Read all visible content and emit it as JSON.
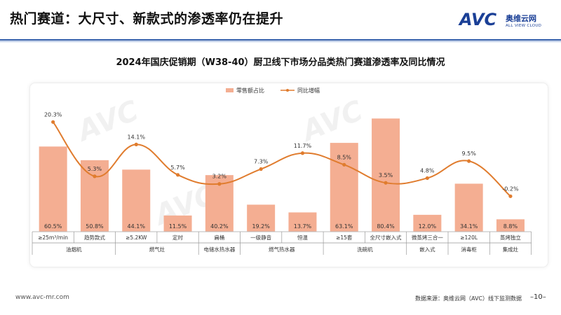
{
  "page": {
    "title": "热门赛道：大尺寸、新款式的渗透率仍在提升",
    "logo_brand": "AVC",
    "logo_cn": "奥维云网",
    "logo_en": "ALL VIEW CLOUD",
    "website": "www.avc-mr.com",
    "source": "数据来源：奥维云网（AVC）线下监测数据",
    "page_number": "–10–"
  },
  "colors": {
    "bar": "#f4ae92",
    "line": "#e07c2e",
    "accent_blue": "#1a3f96"
  },
  "chart_data": {
    "type": "bar",
    "title": "2024年国庆促销期（W38-40）厨卫线下市场分品类热门赛道渗透率及同比情况",
    "legend": [
      "零售额占比",
      "同比增幅"
    ],
    "legend_position": "top-center",
    "categories": [
      "≥25m³/min",
      "趋势款式",
      "≥5.2KW",
      "定时",
      "扁桶",
      "一级静音",
      "恒温",
      "≥15套",
      "全尺寸嵌入式",
      "微蒸烤三合一",
      "≥120L",
      "蒸烤独立"
    ],
    "groups": [
      {
        "label": "油烟机",
        "span": 2
      },
      {
        "label": "燃气灶",
        "span": 2
      },
      {
        "label": "电储水热水器",
        "span": 1
      },
      {
        "label": "燃气热水器",
        "span": 2
      },
      {
        "label": "洗碗机",
        "span": 2
      },
      {
        "label": "嵌入式",
        "span": 1
      },
      {
        "label": "消毒柜",
        "span": 1
      },
      {
        "label": "集成灶",
        "span": 1
      }
    ],
    "series": [
      {
        "name": "零售额占比",
        "type": "bar",
        "values": [
          60.5,
          50.8,
          44.1,
          11.5,
          40.2,
          19.2,
          13.7,
          63.1,
          80.4,
          12.0,
          34.1,
          8.8
        ],
        "labels": [
          "60.5%",
          "50.8%",
          "44.1%",
          "11.5%",
          "40.2%",
          "19.2%",
          "13.7%",
          "63.1%",
          "80.4%",
          "12.0%",
          "34.1%",
          "8.8%"
        ]
      },
      {
        "name": "同比增幅",
        "type": "line",
        "values": [
          20.3,
          5.3,
          14.1,
          5.7,
          3.2,
          7.3,
          11.7,
          8.5,
          3.5,
          4.8,
          9.5,
          -0.2
        ],
        "labels": [
          "20.3%",
          "5.3%",
          "14.1%",
          "5.7%",
          "3.2%",
          "7.3%",
          "11.7%",
          "8.5%",
          "3.5%",
          "4.8%",
          "9.5%",
          "-0.2%"
        ]
      }
    ],
    "bar_axis": [
      0,
      90
    ],
    "line_axis": [
      -10,
      25
    ],
    "grid": false
  }
}
